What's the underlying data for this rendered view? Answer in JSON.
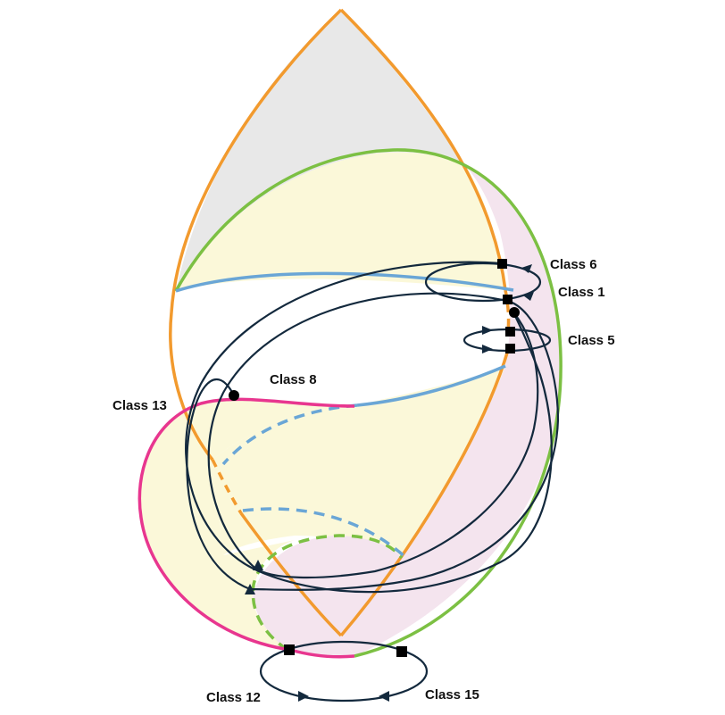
{
  "labels": {
    "class_6": "Class 6",
    "class_1": "Class 1",
    "class_5": "Class 5",
    "class_8": "Class 8",
    "class_13": "Class 13",
    "class_12": "Class 12",
    "class_15": "Class 15"
  },
  "colors": {
    "orange": "#F29A2E",
    "green": "#7CC043",
    "blue": "#6AA6D6",
    "magenta": "#E8368F",
    "dark": "#13293D",
    "gray_fill": "#E8E8E8",
    "yellow_fill": "#FBF8D9",
    "pink_fill": "#F4E4EE",
    "marker": "#000000"
  }
}
